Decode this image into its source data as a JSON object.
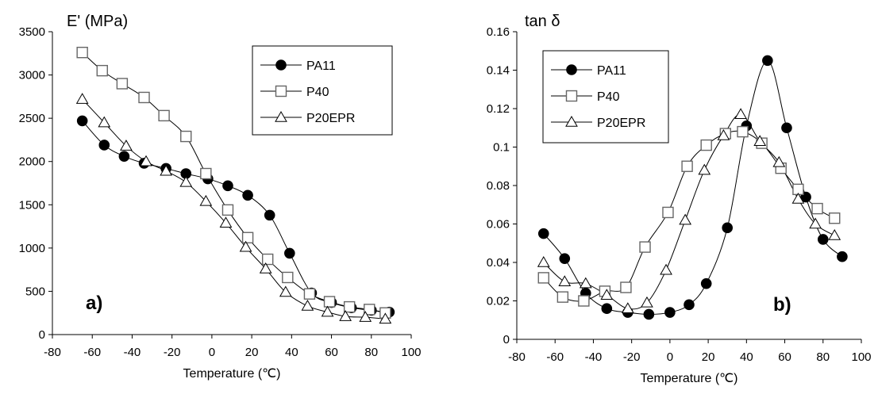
{
  "chart_data": [
    {
      "type": "scatter",
      "ylabel": "E' (MPa)",
      "xlabel": "Temperature (℃)",
      "panel_label": "a)",
      "xlim": [
        -80,
        100
      ],
      "ylim": [
        0,
        3500
      ],
      "xticks": [
        "-80",
        "-60",
        "-40",
        "-20",
        "0",
        "20",
        "40",
        "60",
        "80",
        "100"
      ],
      "yticks": [
        "0",
        "500",
        "1000",
        "1500",
        "2000",
        "2500",
        "3000",
        "3500"
      ],
      "grid": false,
      "legend_position": "top-right",
      "series": [
        {
          "name": "PA11",
          "marker": "circle-filled",
          "x": [
            -65,
            -54,
            -44,
            -34,
            -23,
            -13,
            -2,
            8,
            18,
            29,
            39,
            50,
            60,
            70,
            80,
            89
          ],
          "y": [
            2470,
            2190,
            2060,
            1980,
            1920,
            1860,
            1800,
            1720,
            1610,
            1380,
            940,
            480,
            370,
            310,
            280,
            260
          ]
        },
        {
          "name": "P40",
          "marker": "square-open",
          "x": [
            -65,
            -55,
            -45,
            -34,
            -24,
            -13,
            -3,
            8,
            18,
            28,
            38,
            49,
            59,
            69,
            79,
            87
          ],
          "y": [
            3260,
            3050,
            2900,
            2740,
            2530,
            2290,
            1860,
            1440,
            1120,
            870,
            660,
            470,
            380,
            320,
            290,
            250
          ]
        },
        {
          "name": "P20EPR",
          "marker": "triangle-open",
          "x": [
            -65,
            -54,
            -43,
            -33,
            -23,
            -13,
            -3,
            7,
            17,
            27,
            37,
            48,
            58,
            67,
            77,
            87
          ],
          "y": [
            2720,
            2450,
            2180,
            2000,
            1890,
            1760,
            1540,
            1290,
            1010,
            760,
            490,
            330,
            260,
            210,
            200,
            180
          ]
        }
      ]
    },
    {
      "type": "scatter",
      "ylabel": "tan δ",
      "xlabel": "Temperature (℃)",
      "panel_label": "b)",
      "xlim": [
        -80,
        100
      ],
      "ylim": [
        0,
        0.16
      ],
      "xticks": [
        "-80",
        "-60",
        "-40",
        "-20",
        "0",
        "20",
        "40",
        "60",
        "80",
        "100"
      ],
      "yticks": [
        "0",
        "0.02",
        "0.04",
        "0.06",
        "0.08",
        "0.1",
        "0.12",
        "0.14",
        "0.16"
      ],
      "grid": false,
      "legend_position": "top-left",
      "series": [
        {
          "name": "PA11",
          "marker": "circle-filled",
          "x": [
            -66,
            -55,
            -44,
            -33,
            -22,
            -11,
            0,
            10,
            19,
            30,
            40,
            51,
            61,
            71,
            80,
            90
          ],
          "y": [
            0.055,
            0.042,
            0.024,
            0.016,
            0.014,
            0.013,
            0.014,
            0.018,
            0.029,
            0.058,
            0.111,
            0.145,
            0.11,
            0.074,
            0.052,
            0.043
          ]
        },
        {
          "name": "P40",
          "marker": "square-open",
          "x": [
            -66,
            -56,
            -45,
            -34,
            -23,
            -13,
            -1,
            9,
            19,
            29,
            38,
            48,
            58,
            67,
            77,
            86
          ],
          "y": [
            0.032,
            0.022,
            0.02,
            0.025,
            0.027,
            0.048,
            0.066,
            0.09,
            0.101,
            0.107,
            0.108,
            0.102,
            0.089,
            0.078,
            0.068,
            0.063
          ]
        },
        {
          "name": "P20EPR",
          "marker": "triangle-open",
          "x": [
            -66,
            -55,
            -44,
            -33,
            -22,
            -12,
            -2,
            8,
            18,
            28,
            37,
            47,
            57,
            67,
            76,
            86
          ],
          "y": [
            0.04,
            0.03,
            0.029,
            0.023,
            0.016,
            0.019,
            0.036,
            0.062,
            0.088,
            0.106,
            0.117,
            0.103,
            0.092,
            0.073,
            0.06,
            0.054
          ]
        }
      ]
    }
  ]
}
